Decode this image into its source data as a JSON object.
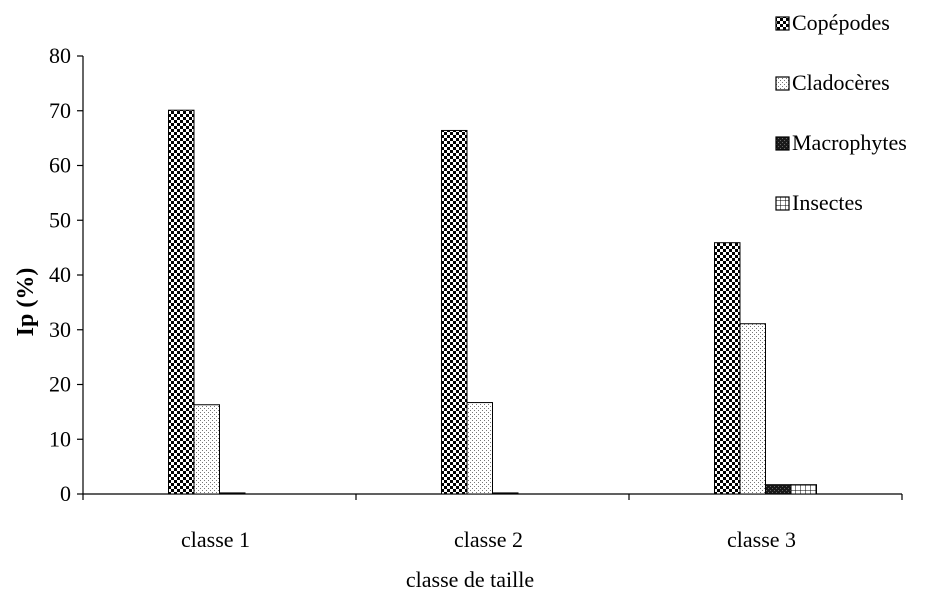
{
  "chart_data": {
    "type": "bar",
    "categories": [
      "classe 1",
      "classe 2",
      "classe 3"
    ],
    "series": [
      {
        "name": "Copépodes",
        "values": [
          70.1,
          66.4,
          45.9
        ],
        "pattern": "checker"
      },
      {
        "name": "Cladocères",
        "values": [
          16.3,
          16.7,
          31.1
        ],
        "pattern": "dots"
      },
      {
        "name": "Macrophytes",
        "values": [
          0.2,
          0.2,
          1.7
        ],
        "pattern": "dark"
      },
      {
        "name": "Insectes",
        "values": [
          0.0,
          0.0,
          1.7
        ],
        "pattern": "grid"
      }
    ],
    "xlabel": "classe de taille",
    "ylabel": "Ip (%)",
    "ylim": [
      0,
      80
    ],
    "yticks": [
      "0",
      "10",
      "20",
      "30",
      "40",
      "50",
      "60",
      "70",
      "80"
    ],
    "grid": false,
    "legend_position": "top-right"
  }
}
